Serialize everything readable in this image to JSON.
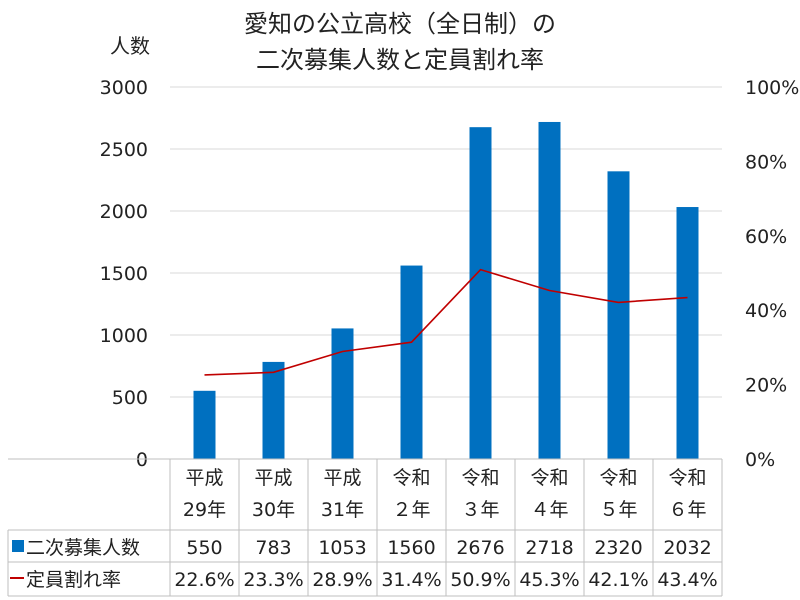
{
  "chart_data": {
    "type": "bar",
    "title_lines": [
      "愛知の公立高校（全日制）の",
      "二次募集人数と定員割れ率"
    ],
    "ylabel": "人数",
    "ylim": [
      0,
      3000
    ],
    "y_ticks": [
      "0",
      "500",
      "1000",
      "1500",
      "2000",
      "2500",
      "3000"
    ],
    "y2lim": [
      0,
      100
    ],
    "y2_ticks": [
      "0%",
      "20%",
      "40%",
      "60%",
      "80%",
      "100%"
    ],
    "categories": [
      [
        "平成",
        "29年"
      ],
      [
        "平成",
        "30年"
      ],
      [
        "平成",
        "31年"
      ],
      [
        "令和",
        "２年"
      ],
      [
        "令和",
        "３年"
      ],
      [
        "令和",
        "４年"
      ],
      [
        "令和",
        "５年"
      ],
      [
        "令和",
        "６年"
      ]
    ],
    "series": [
      {
        "name": "二次募集人数",
        "type": "bar",
        "axis": "left",
        "color": "#0070c0",
        "values": [
          550,
          783,
          1053,
          1560,
          2676,
          2718,
          2320,
          2032
        ],
        "labels": [
          "550",
          "783",
          "1053",
          "1560",
          "2676",
          "2718",
          "2320",
          "2032"
        ]
      },
      {
        "name": "定員割れ率",
        "type": "line",
        "axis": "right",
        "color": "#c00000",
        "values": [
          22.6,
          23.3,
          28.9,
          31.4,
          50.9,
          45.3,
          42.1,
          43.4
        ],
        "labels": [
          "22.6%",
          "23.3%",
          "28.9%",
          "31.4%",
          "50.9%",
          "45.3%",
          "42.1%",
          "43.4%"
        ]
      }
    ],
    "grid": "horizontal",
    "legend": "data-table"
  }
}
